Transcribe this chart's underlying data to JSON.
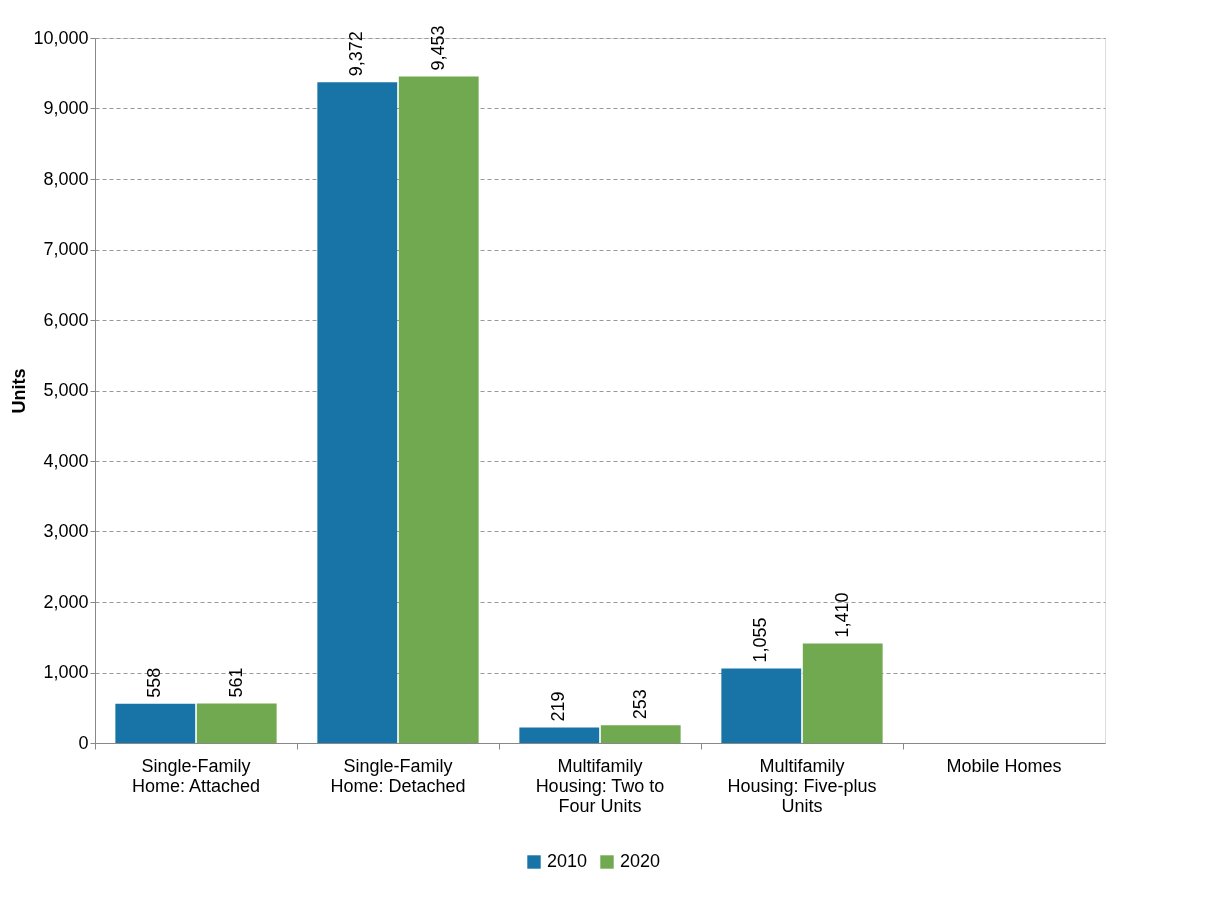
{
  "chart_data": {
    "type": "bar",
    "ylabel": "Units",
    "categories": [
      "Single-Family Home: Attached",
      "Single-Family Home: Detached",
      "Multifamily Housing: Two to Four Units",
      "Multifamily Housing: Five-plus Units",
      "Mobile Homes"
    ],
    "series": [
      {
        "name": "2010",
        "color": "#1874a6",
        "values": [
          558,
          9372,
          219,
          1055,
          null
        ],
        "value_labels": [
          "558",
          "9,372",
          "219",
          "1,055",
          null
        ]
      },
      {
        "name": "2020",
        "color": "#70a94f",
        "values": [
          561,
          9453,
          253,
          1410,
          null
        ],
        "value_labels": [
          "561",
          "9,453",
          "253",
          "1,410",
          null
        ]
      }
    ],
    "ylim": [
      0,
      10000
    ],
    "yticks": [
      0,
      {
        "value": 1000,
        "label": "1,000"
      },
      {
        "value": 2000,
        "label": "2,000"
      },
      {
        "value": 3000,
        "label": "3,000"
      },
      {
        "value": 4000,
        "label": "4,000"
      },
      {
        "value": 5000,
        "label": "5,000"
      },
      {
        "value": 6000,
        "label": "6,000"
      },
      {
        "value": 7000,
        "label": "7,000"
      },
      {
        "value": 8000,
        "label": "8,000"
      },
      {
        "value": 9000,
        "label": "9,000"
      },
      {
        "value": 10000,
        "label": "10,000"
      }
    ],
    "grid": "y",
    "legend": "bottom"
  }
}
